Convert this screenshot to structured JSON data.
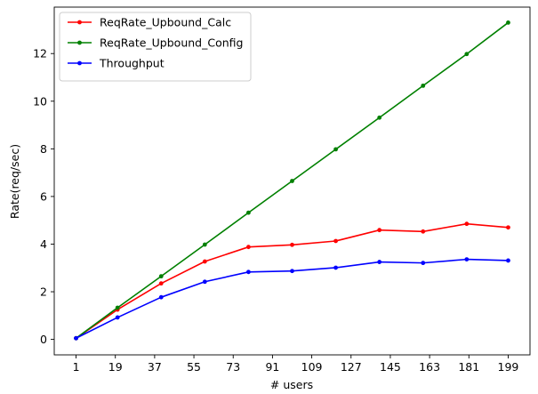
{
  "chart_data": {
    "type": "line",
    "title": "",
    "xlabel": "# users",
    "ylabel": "Rate(req/sec)",
    "x_ticks": [
      "1",
      "19",
      "37",
      "55",
      "73",
      "91",
      "109",
      "127",
      "145",
      "163",
      "181",
      "199"
    ],
    "y_ticks": [
      "0",
      "2",
      "4",
      "6",
      "8",
      "10",
      "12"
    ],
    "xlim": [
      -9,
      209
    ],
    "ylim": [
      -0.65,
      13.95
    ],
    "grid": false,
    "legend_position": "top-left",
    "x": [
      1,
      20,
      40,
      60,
      80,
      100,
      120,
      140,
      160,
      180,
      199
    ],
    "series": [
      {
        "name": "ReqRate_Upbound_Calc",
        "color": "#ff0000",
        "values": [
          0.05,
          1.25,
          2.35,
          3.27,
          3.88,
          3.97,
          4.13,
          4.59,
          4.53,
          4.85,
          4.7
        ]
      },
      {
        "name": "ReqRate_Upbound_Config",
        "color": "#008000",
        "values": [
          0.05,
          1.33,
          2.65,
          3.98,
          5.32,
          6.65,
          7.98,
          9.31,
          10.65,
          11.98,
          13.3
        ]
      },
      {
        "name": "Throughput",
        "color": "#0000ff",
        "values": [
          0.05,
          0.92,
          1.77,
          2.42,
          2.83,
          2.87,
          3.01,
          3.25,
          3.21,
          3.36,
          3.31
        ]
      }
    ]
  }
}
